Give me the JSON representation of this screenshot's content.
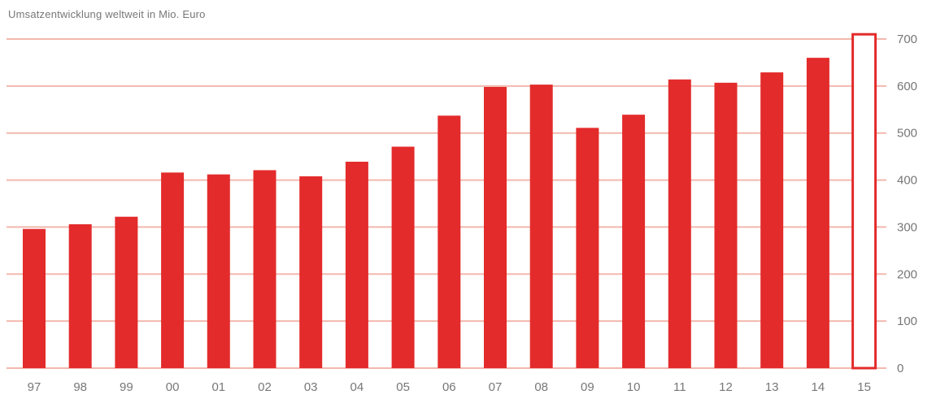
{
  "chart_data": {
    "type": "bar",
    "title": "Umsatzentwicklung weltweit in Mio. Euro",
    "xlabel": "",
    "ylabel": "",
    "categories": [
      "97",
      "98",
      "99",
      "00",
      "01",
      "02",
      "03",
      "04",
      "05",
      "06",
      "07",
      "08",
      "09",
      "10",
      "11",
      "12",
      "13",
      "14",
      "15"
    ],
    "values": [
      296,
      306,
      322,
      416,
      412,
      421,
      408,
      439,
      471,
      537,
      598,
      603,
      511,
      539,
      614,
      607,
      629,
      660,
      710
    ],
    "outlined_categories": [
      "15"
    ],
    "ylim": [
      0,
      700
    ],
    "yticks": [
      0,
      100,
      200,
      300,
      400,
      500,
      600,
      700
    ],
    "grid": true,
    "y_axis_position": "right",
    "colors": {
      "bar_fill": "#e32b2b",
      "bar_outline": "#e32b2b",
      "grid": "#f2b8ae",
      "text": "#777777"
    }
  }
}
